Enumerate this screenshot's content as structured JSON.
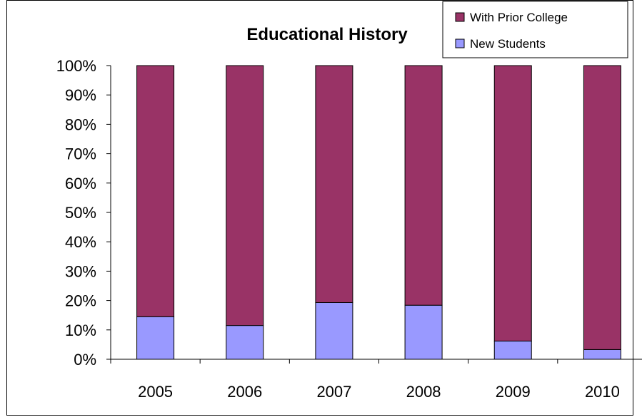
{
  "chart_data": {
    "type": "bar",
    "stacked": true,
    "percent_stacked": true,
    "title": "Educational History",
    "xlabel": "",
    "ylabel": "",
    "categories": [
      "2005",
      "2006",
      "2007",
      "2008",
      "2009",
      "2010"
    ],
    "series": [
      {
        "name": "New Students",
        "color": "#9999ff",
        "values": [
          14.5,
          11.5,
          19.3,
          18.4,
          6.2,
          3.3
        ]
      },
      {
        "name": "With Prior College",
        "color": "#993366",
        "values": [
          85.5,
          88.5,
          80.7,
          81.6,
          93.8,
          96.7
        ]
      }
    ],
    "ylim": [
      0,
      100
    ],
    "yticks": [
      "0%",
      "10%",
      "20%",
      "30%",
      "40%",
      "50%",
      "60%",
      "70%",
      "80%",
      "90%",
      "100%"
    ],
    "grid": false,
    "legend": {
      "position": "top-right",
      "entries": [
        "With Prior College",
        "New Students"
      ]
    }
  }
}
